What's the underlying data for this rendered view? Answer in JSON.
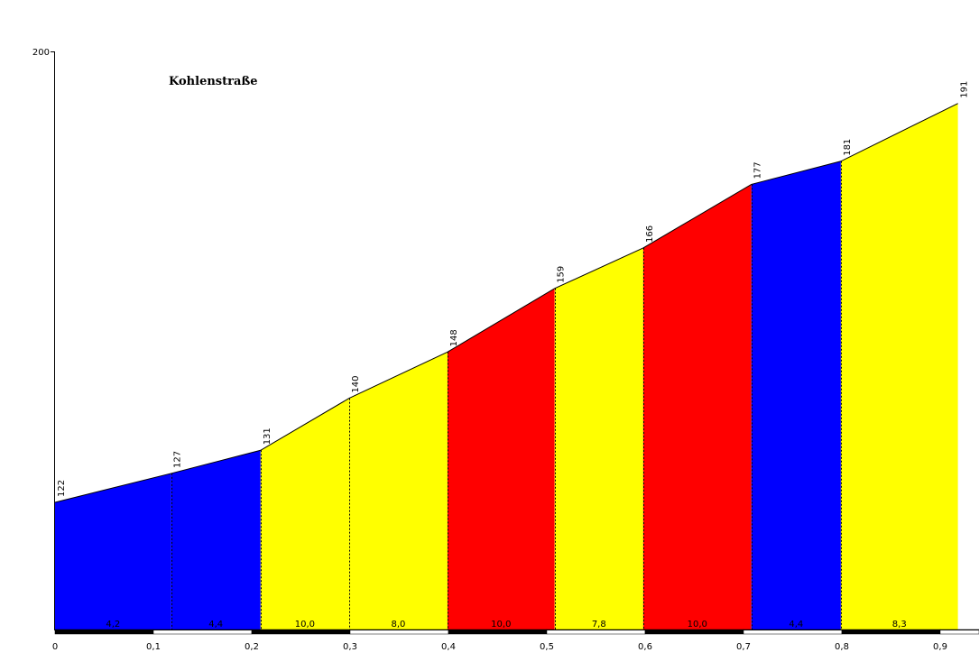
{
  "chart_data": {
    "type": "area",
    "title": "Kohlenstraße",
    "y_top_label": "200",
    "ylim": [
      100,
      200
    ],
    "xlim": [
      0,
      0.943
    ],
    "x_ticks": [
      "0",
      "0,1",
      "0,2",
      "0,3",
      "0,4",
      "0,5",
      "0,6",
      "0,7",
      "0,8",
      "0,9"
    ],
    "points": [
      {
        "x": 0.0,
        "y": 122,
        "label": "122"
      },
      {
        "x": 0.118,
        "y": 127,
        "label": "127"
      },
      {
        "x": 0.209,
        "y": 131,
        "label": "131"
      },
      {
        "x": 0.299,
        "y": 140,
        "label": "140"
      },
      {
        "x": 0.399,
        "y": 148,
        "label": "148"
      },
      {
        "x": 0.508,
        "y": 159,
        "label": "159"
      },
      {
        "x": 0.598,
        "y": 166,
        "label": "166"
      },
      {
        "x": 0.708,
        "y": 177,
        "label": "177"
      },
      {
        "x": 0.799,
        "y": 181,
        "label": "181"
      },
      {
        "x": 0.918,
        "y": 191,
        "label": "191"
      }
    ],
    "segments": [
      {
        "gradient": "4,2",
        "color": "#0000ff"
      },
      {
        "gradient": "4,4",
        "color": "#0000ff"
      },
      {
        "gradient": "10,0",
        "color": "#ffff00"
      },
      {
        "gradient": "8,0",
        "color": "#ffff00"
      },
      {
        "gradient": "10,0",
        "color": "#ff0000"
      },
      {
        "gradient": "7,8",
        "color": "#ffff00"
      },
      {
        "gradient": "10,0",
        "color": "#ff0000"
      },
      {
        "gradient": "4,4",
        "color": "#0000ff"
      },
      {
        "gradient": "8,3",
        "color": "#ffff00"
      }
    ]
  }
}
